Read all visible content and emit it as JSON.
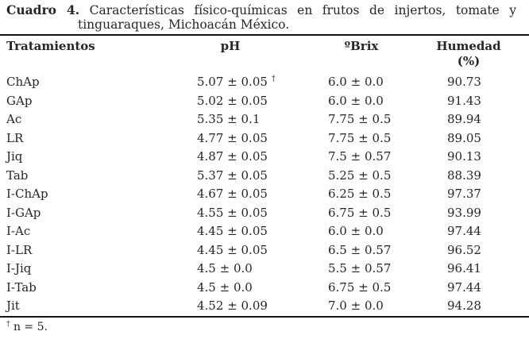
{
  "caption": {
    "label": "Cuadro 4.",
    "line1": "Características físico-químicas en frutos de injertos, tomate y",
    "line2": "tinguaraques, Michoacán México."
  },
  "table": {
    "columns": [
      {
        "label": "Tratamientos"
      },
      {
        "label": "pH"
      },
      {
        "label": "ºBrix"
      },
      {
        "label": "Humedad",
        "sub": "(%)"
      }
    ],
    "rows": [
      {
        "tratamiento": "ChAp",
        "ph": "5.07 ± 0.05",
        "ph_note": "†",
        "brix": "6.0 ± 0.0",
        "humedad": "90.73"
      },
      {
        "tratamiento": "GAp",
        "ph": "5.02 ± 0.05",
        "brix": "6.0 ± 0.0",
        "humedad": "91.43"
      },
      {
        "tratamiento": "Ac",
        "ph": "5.35 ± 0.1",
        "brix": "7.75 ± 0.5",
        "humedad": "89.94"
      },
      {
        "tratamiento": "LR",
        "ph": "4.77 ± 0.05",
        "brix": "7.75 ± 0.5",
        "humedad": "89.05"
      },
      {
        "tratamiento": "Jiq",
        "ph": "4.87 ± 0.05",
        "brix": "7.5 ± 0.57",
        "humedad": "90.13"
      },
      {
        "tratamiento": "Tab",
        "ph": "5.37 ± 0.05",
        "brix": "5.25 ± 0.5",
        "humedad": "88.39"
      },
      {
        "tratamiento": "I-ChAp",
        "ph": "4.67 ± 0.05",
        "brix": "6.25 ± 0.5",
        "humedad": "97.37"
      },
      {
        "tratamiento": "I-GAp",
        "ph": "4.55 ± 0.05",
        "brix": "6.75 ± 0.5",
        "humedad": "93.99"
      },
      {
        "tratamiento": "I-Ac",
        "ph": "4.45 ± 0.05",
        "brix": "6.0 ± 0.0",
        "humedad": "97.44"
      },
      {
        "tratamiento": "I-LR",
        "ph": "4.45 ± 0.05",
        "brix": "6.5 ± 0.57",
        "humedad": "96.52"
      },
      {
        "tratamiento": "I-Jiq",
        "ph": "4.5 ± 0.0",
        "brix": "5.5 ± 0.57",
        "humedad": "96.41"
      },
      {
        "tratamiento": "I-Tab",
        "ph": "4.5 ± 0.0",
        "brix": "6.75 ± 0.5",
        "humedad": "97.44"
      },
      {
        "tratamiento": "Jit",
        "ph": "4.52 ± 0.09",
        "brix": "7.0 ± 0.0",
        "humedad": "94.28"
      }
    ]
  },
  "footnote": {
    "marker": "†",
    "text": "n = 5."
  },
  "colors": {
    "text": "#262626",
    "rule": "#151515",
    "background": "#ffffff"
  }
}
